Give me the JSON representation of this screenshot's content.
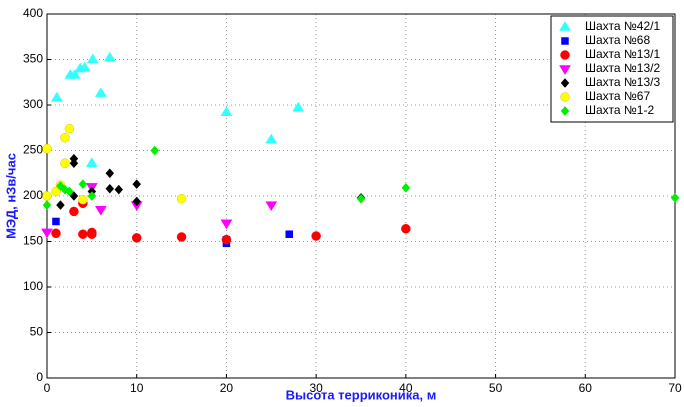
{
  "chart_data": {
    "type": "scatter",
    "x_label": "Высота терриконика, м",
    "y_label": "МЭД, нЗв/час",
    "xlim": [
      0,
      70
    ],
    "xticks": [
      0,
      10,
      20,
      30,
      40,
      50,
      60,
      70
    ],
    "ylim": [
      0,
      400
    ],
    "yticks": [
      0,
      50,
      100,
      150,
      200,
      250,
      300,
      350,
      400
    ],
    "grid": true,
    "legend": "upper right",
    "series": [
      {
        "name": "Шахта №42/1",
        "color": "#33ffff",
        "marker": "triangle-up",
        "x": [
          1.1,
          2.6,
          3.1,
          3.7,
          4.2,
          5.1,
          7,
          6,
          5,
          20,
          25,
          28
        ],
        "values": [
          308,
          333,
          333,
          340,
          341,
          350,
          352,
          313,
          236,
          292,
          262,
          297
        ]
      },
      {
        "name": "Шахта №68",
        "color": "#0000ff",
        "marker": "square",
        "x": [
          1,
          20,
          20,
          27
        ],
        "values": [
          172,
          148,
          152,
          158
        ]
      },
      {
        "name": "Шахта №13/1",
        "color": "#ff0000",
        "marker": "circle",
        "x": [
          1,
          3,
          4,
          4,
          5,
          5,
          10,
          15,
          20,
          30,
          40
        ],
        "values": [
          159,
          183,
          192,
          158,
          158,
          160,
          154,
          155,
          152,
          156,
          164
        ]
      },
      {
        "name": "Шахта №13/2",
        "color": "#ff00ff",
        "marker": "triangle-down",
        "x": [
          0,
          5,
          6,
          10,
          20,
          25
        ],
        "values": [
          160,
          210,
          185,
          190,
          170,
          190
        ]
      },
      {
        "name": "Шахта №13/3",
        "color": "#000000",
        "marker": "diamond",
        "x": [
          1.5,
          3,
          3,
          3,
          5,
          7,
          7,
          8,
          10,
          10,
          35
        ],
        "values": [
          190,
          241,
          236,
          200,
          205,
          225,
          208,
          207,
          213,
          194,
          198
        ]
      },
      {
        "name": "Шахта №67",
        "color": "#ffff00",
        "marker": "circle",
        "x": [
          0,
          0,
          1,
          2,
          2.5,
          2,
          4,
          15,
          1.5
        ],
        "values": [
          252,
          200,
          205,
          264,
          274,
          236,
          196,
          197,
          212
        ]
      },
      {
        "name": "Шахта №1-2",
        "color": "#00ee00",
        "marker": "diamond",
        "x": [
          0,
          1.5,
          2,
          2.5,
          4,
          5,
          12,
          35,
          40,
          70
        ],
        "values": [
          190,
          211,
          207,
          205,
          213,
          200,
          250,
          197,
          209,
          198
        ]
      }
    ]
  }
}
